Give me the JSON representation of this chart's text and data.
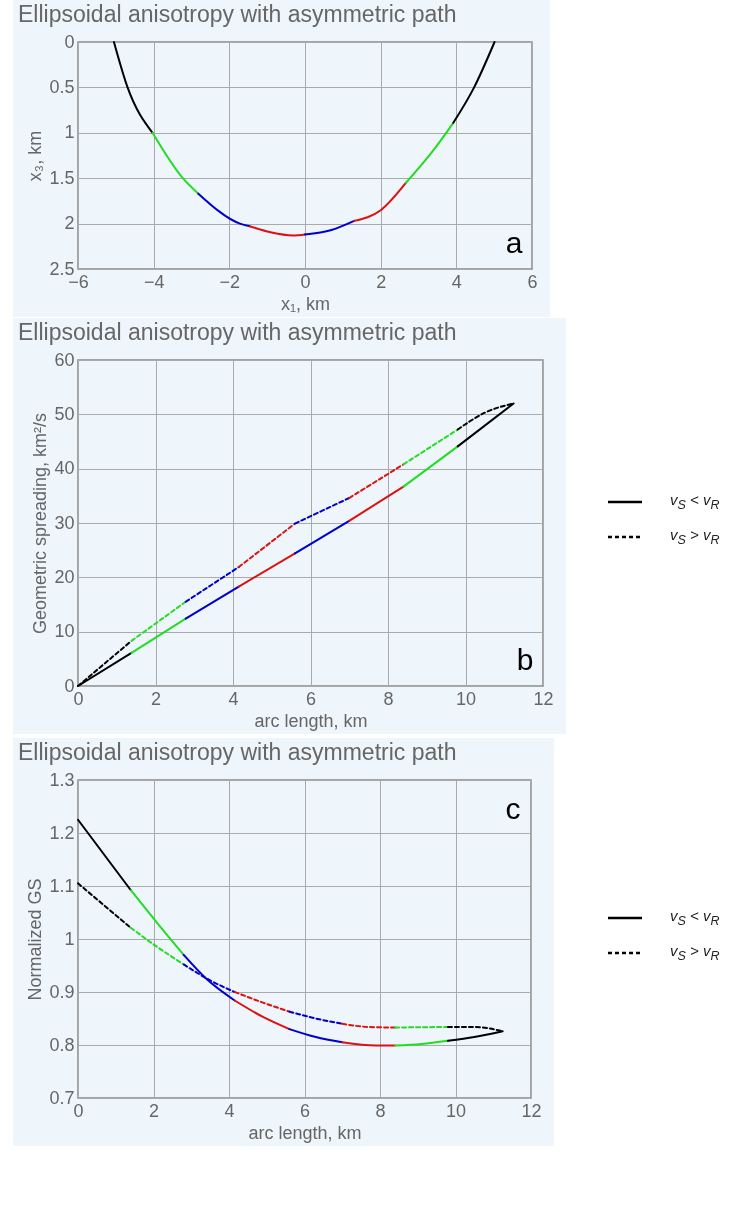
{
  "chart_data": [
    {
      "type": "line",
      "title": "Ellipsoidal anisotropy with asymmetric path",
      "xlabel": "x₁, km",
      "ylabel": "x₃, km",
      "xlim": [
        -6,
        6
      ],
      "xticks": [
        -6,
        -4,
        -2,
        0,
        2,
        4,
        6
      ],
      "ylim": [
        2.5,
        0
      ],
      "yticks": [
        0,
        0.5,
        1,
        1.5,
        2,
        2.5
      ],
      "grid": true,
      "annotations": [
        "a"
      ],
      "series": [
        {
          "color": "#000000",
          "line_style": "solid",
          "x": [
            -5.05,
            -4.69,
            -4.03
          ],
          "values": [
            0,
            0.5,
            1.0
          ]
        },
        {
          "color": "#22dd22",
          "line_style": "solid",
          "x": [
            -4.03,
            -3.23,
            -2.82
          ],
          "values": [
            1.0,
            1.5,
            1.67
          ]
        },
        {
          "color": "#0000cc",
          "line_style": "solid",
          "x": [
            -2.82,
            -1.72,
            -1.46
          ],
          "values": [
            1.67,
            2.0,
            2.03
          ]
        },
        {
          "color": "#dd1111",
          "line_style": "solid",
          "x": [
            -1.46,
            -0.3,
            0
          ],
          "values": [
            2.03,
            2.13,
            2.12
          ]
        },
        {
          "color": "#0000cc",
          "line_style": "solid",
          "x": [
            0,
            0.7,
            1.3
          ],
          "values": [
            2.12,
            2.07,
            1.97
          ]
        },
        {
          "color": "#dd1111",
          "line_style": "solid",
          "x": [
            1.3,
            2.01,
            2.67
          ],
          "values": [
            1.97,
            1.85,
            1.55
          ]
        },
        {
          "color": "#22dd22",
          "line_style": "solid",
          "x": [
            2.67,
            3.38,
            3.92
          ],
          "values": [
            1.55,
            1.2,
            0.89
          ]
        },
        {
          "color": "#000000",
          "line_style": "solid",
          "x": [
            3.92,
            4.47,
            5.01
          ],
          "values": [
            0.89,
            0.5,
            0
          ]
        }
      ]
    },
    {
      "type": "line",
      "title": "Ellipsoidal anisotropy with asymmetric path",
      "xlabel": "arc length, km",
      "ylabel": "Geometric spreading, km²/s",
      "xlim": [
        0,
        12
      ],
      "xticks": [
        0,
        2,
        4,
        6,
        8,
        10,
        12
      ],
      "ylim": [
        0,
        60
      ],
      "yticks": [
        0,
        10,
        20,
        30,
        40,
        50,
        60
      ],
      "grid": true,
      "legend": "right",
      "annotations": [
        "b"
      ],
      "series": [
        {
          "name": "v$_{S}$ < v$_{R}$",
          "color": "#000000",
          "line_style": "solid",
          "x": [
            0,
            1.38
          ],
          "values": [
            0,
            6.1
          ]
        },
        {
          "color": "#22dd22",
          "line_style": "solid",
          "x": [
            1.38,
            2.78
          ],
          "values": [
            6.1,
            12.4
          ]
        },
        {
          "color": "#0000cc",
          "line_style": "solid",
          "x": [
            2.78,
            4.15
          ],
          "values": [
            12.4,
            18.3
          ]
        },
        {
          "color": "#dd1111",
          "line_style": "solid",
          "x": [
            4.15,
            5.6
          ],
          "values": [
            18.3,
            24.4
          ]
        },
        {
          "color": "#0000cc",
          "line_style": "solid",
          "x": [
            5.6,
            7.0
          ],
          "values": [
            24.4,
            30.4
          ]
        },
        {
          "color": "#dd1111",
          "line_style": "solid",
          "x": [
            7.0,
            8.4
          ],
          "values": [
            30.4,
            36.7
          ]
        },
        {
          "color": "#22dd22",
          "line_style": "solid",
          "x": [
            8.4,
            9.8
          ],
          "values": [
            36.7,
            44.1
          ]
        },
        {
          "color": "#000000",
          "line_style": "solid",
          "x": [
            9.8,
            11.24
          ],
          "values": [
            44.1,
            52.0
          ]
        },
        {
          "name": "v$_{S}$ > v$_{R}$",
          "color": "#000000",
          "line_style": "dashed",
          "x": [
            0,
            1.38
          ],
          "values": [
            0,
            8.3
          ]
        },
        {
          "color": "#22dd22",
          "line_style": "dashed",
          "x": [
            1.38,
            2.78
          ],
          "values": [
            8.3,
            15.5
          ]
        },
        {
          "color": "#0000cc",
          "line_style": "dashed",
          "x": [
            2.78,
            4.15
          ],
          "values": [
            15.5,
            21.9
          ]
        },
        {
          "color": "#dd1111",
          "line_style": "dashed",
          "x": [
            4.15,
            5.6
          ],
          "values": [
            21.9,
            29.9
          ]
        },
        {
          "color": "#0000cc",
          "line_style": "dashed",
          "x": [
            5.6,
            7.0
          ],
          "values": [
            29.9,
            34.6
          ]
        },
        {
          "color": "#dd1111",
          "line_style": "dashed",
          "x": [
            7.0,
            8.4
          ],
          "values": [
            34.6,
            40.8
          ]
        },
        {
          "color": "#22dd22",
          "line_style": "dashed",
          "x": [
            8.4,
            9.8
          ],
          "values": [
            40.8,
            47.2
          ]
        },
        {
          "color": "#000000",
          "line_style": "dashed",
          "x": [
            9.8,
            10.5,
            11.24
          ],
          "values": [
            47.2,
            50.3,
            52.0
          ]
        }
      ]
    },
    {
      "type": "line",
      "title": "Ellipsoidal anisotropy with asymmetric path",
      "xlabel": "arc length, km",
      "ylabel": "Normalized GS",
      "xlim": [
        0,
        12
      ],
      "xticks": [
        0,
        2,
        4,
        6,
        8,
        10,
        12
      ],
      "ylim": [
        0.7,
        1.3
      ],
      "yticks": [
        0.7,
        0.8,
        0.9,
        1,
        1.1,
        1.2,
        1.3
      ],
      "grid": true,
      "legend": "right",
      "annotations": [
        "c"
      ],
      "series": [
        {
          "name": "v$_{S}$ < v$_{R}$",
          "color": "#000000",
          "line_style": "solid",
          "x": [
            0,
            1.4
          ],
          "values": [
            1.225,
            1.092
          ]
        },
        {
          "color": "#22dd22",
          "line_style": "solid",
          "x": [
            1.4,
            2.1,
            2.8
          ],
          "values": [
            1.092,
            1.03,
            0.97
          ]
        },
        {
          "color": "#0000cc",
          "line_style": "solid",
          "x": [
            2.8,
            3.4,
            4.15
          ],
          "values": [
            0.97,
            0.925,
            0.884
          ]
        },
        {
          "color": "#dd1111",
          "line_style": "solid",
          "x": [
            4.15,
            4.9,
            5.6
          ],
          "values": [
            0.884,
            0.853,
            0.83
          ]
        },
        {
          "color": "#0000cc",
          "line_style": "solid",
          "x": [
            5.6,
            6.3,
            7.0
          ],
          "values": [
            0.83,
            0.815,
            0.805
          ]
        },
        {
          "color": "#dd1111",
          "line_style": "solid",
          "x": [
            7.0,
            7.9,
            8.4
          ],
          "values": [
            0.805,
            0.799,
            0.799
          ]
        },
        {
          "color": "#22dd22",
          "line_style": "solid",
          "x": [
            8.4,
            9.1,
            9.8
          ],
          "values": [
            0.799,
            0.802,
            0.808
          ]
        },
        {
          "color": "#000000",
          "line_style": "solid",
          "x": [
            9.8,
            10.5,
            11.25
          ],
          "values": [
            0.808,
            0.815,
            0.826
          ]
        },
        {
          "name": "v$_{S}$ > v$_{R}$",
          "color": "#000000",
          "line_style": "dashed",
          "x": [
            0,
            1.4
          ],
          "values": [
            1.105,
            1.021
          ]
        },
        {
          "color": "#22dd22",
          "line_style": "dashed",
          "x": [
            1.4,
            2.1,
            2.8
          ],
          "values": [
            1.021,
            0.985,
            0.952
          ]
        },
        {
          "color": "#0000cc",
          "line_style": "dashed",
          "x": [
            2.8,
            3.5,
            4.15
          ],
          "values": [
            0.952,
            0.922,
            0.9
          ]
        },
        {
          "color": "#dd1111",
          "line_style": "dashed",
          "x": [
            4.15,
            4.9,
            5.6
          ],
          "values": [
            0.9,
            0.88,
            0.863
          ]
        },
        {
          "color": "#0000cc",
          "line_style": "dashed",
          "x": [
            5.6,
            6.3,
            7.0
          ],
          "values": [
            0.863,
            0.85,
            0.84
          ]
        },
        {
          "color": "#dd1111",
          "line_style": "dashed",
          "x": [
            7.0,
            7.7,
            8.4
          ],
          "values": [
            0.84,
            0.834,
            0.833
          ]
        },
        {
          "color": "#22dd22",
          "line_style": "dashed",
          "x": [
            8.4,
            9.8
          ],
          "values": [
            0.833,
            0.834
          ]
        },
        {
          "color": "#000000",
          "line_style": "dashed",
          "x": [
            9.8,
            10.5,
            11.25
          ],
          "values": [
            0.834,
            0.834,
            0.826
          ]
        }
      ]
    }
  ]
}
